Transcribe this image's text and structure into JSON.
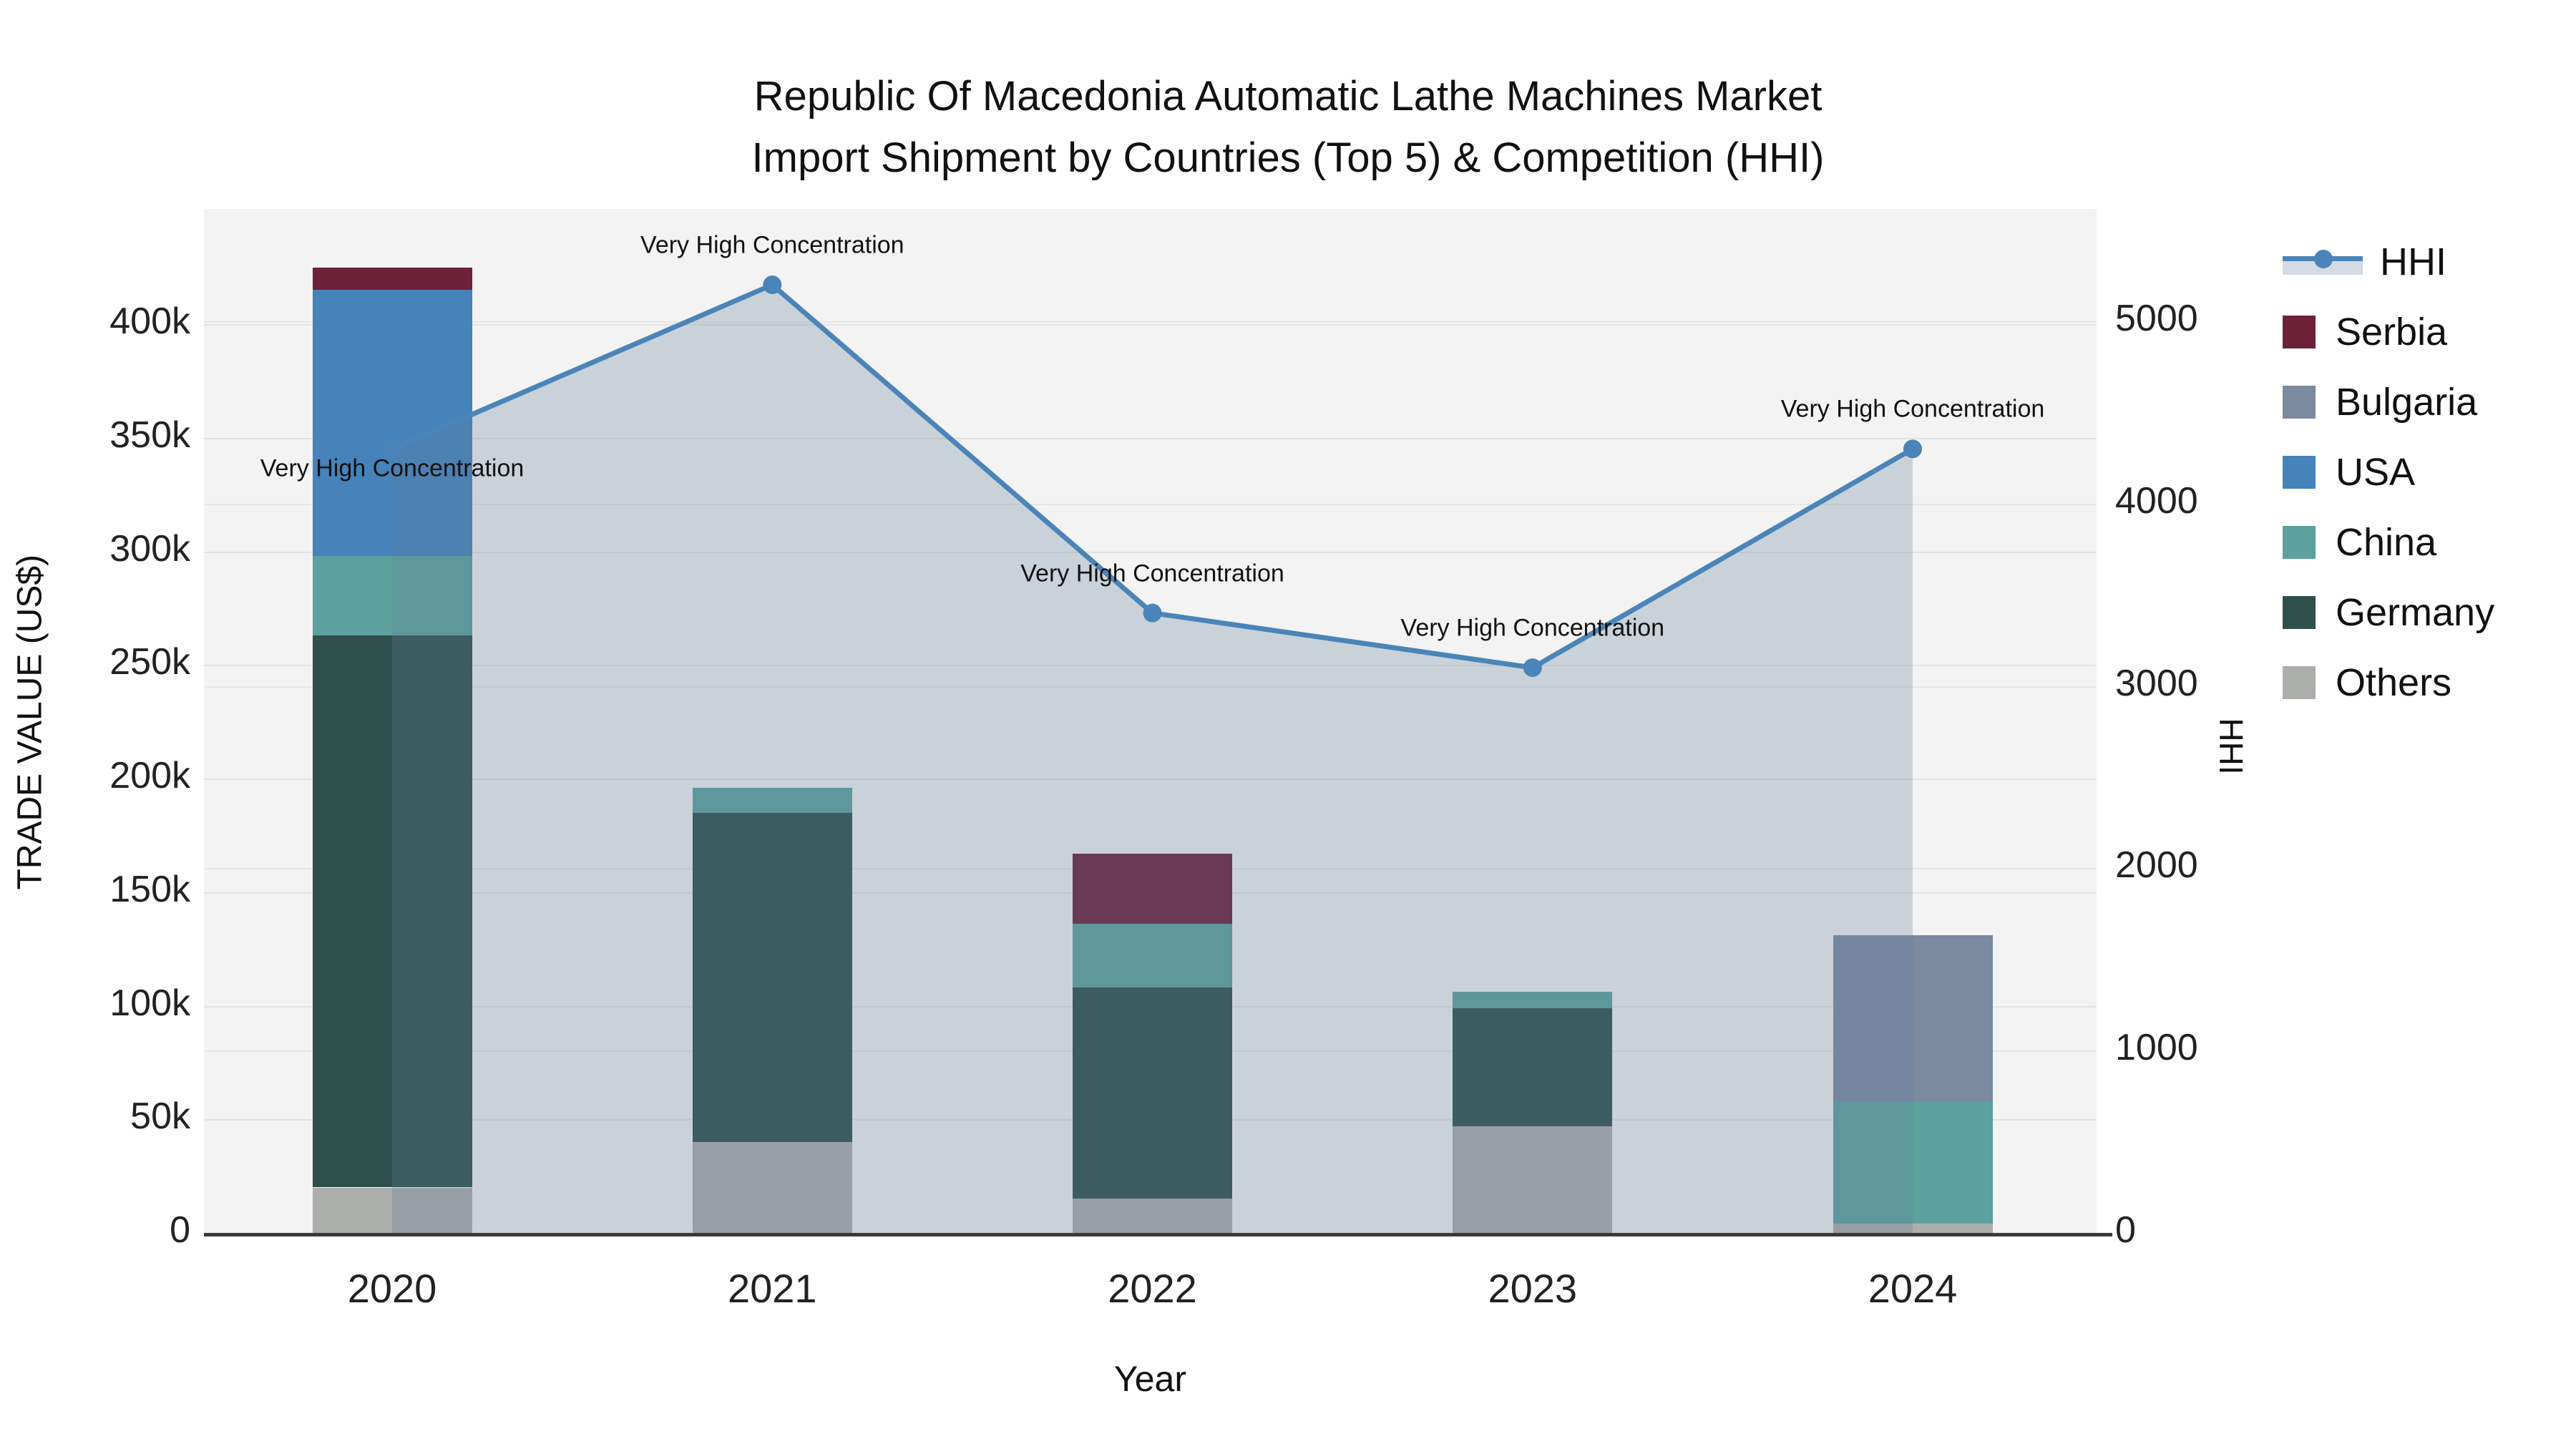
{
  "title": {
    "line1": "Republic Of Macedonia Automatic Lathe Machines Market",
    "line2": "Import Shipment by Countries (Top 5) & Competition (HHI)"
  },
  "colors": {
    "plot_background": "#f2f3f2",
    "hhi_line": "#4b84b8",
    "hhi_fill": "rgba(101,127,156,0.28)",
    "serbia": "#6d2139",
    "bulgaria": "#7b89a1",
    "usa": "#4583ba",
    "china": "#5ca19d",
    "germany": "#2f4f4b",
    "others": "#acaeab"
  },
  "legend": {
    "items": [
      {
        "label": "HHI",
        "type": "line",
        "color": "#4b84b8"
      },
      {
        "label": "Serbia",
        "type": "swatch",
        "color": "#6d2139"
      },
      {
        "label": "Bulgaria",
        "type": "swatch",
        "color": "#7b89a1"
      },
      {
        "label": "USA",
        "type": "swatch",
        "color": "#4583ba"
      },
      {
        "label": "China",
        "type": "swatch",
        "color": "#5ca19d"
      },
      {
        "label": "Germany",
        "type": "swatch",
        "color": "#2f4f4b"
      },
      {
        "label": "Others",
        "type": "swatch",
        "color": "#acaeab"
      }
    ]
  },
  "chart_data": {
    "type": "bar+line",
    "x": [
      "2020",
      "2021",
      "2022",
      "2023",
      "2024"
    ],
    "x_title": "Year",
    "bar_unit": "US$ thousands",
    "bar_stack_order_bottom_to_top": [
      "Others",
      "Germany",
      "China",
      "USA",
      "Bulgaria",
      "Serbia"
    ],
    "series": [
      {
        "name": "Others",
        "color": "#acaeab",
        "values_k": [
          20,
          40,
          15,
          47,
          4
        ]
      },
      {
        "name": "Germany",
        "color": "#2f4f4b",
        "values_k": [
          243,
          145,
          93,
          52,
          0
        ]
      },
      {
        "name": "China",
        "color": "#5ca19d",
        "values_k": [
          35,
          11,
          28,
          7,
          54
        ]
      },
      {
        "name": "USA",
        "color": "#4583ba",
        "values_k": [
          117,
          0,
          0,
          0,
          0
        ]
      },
      {
        "name": "Bulgaria",
        "color": "#7b89a1",
        "values_k": [
          0,
          0,
          0,
          0,
          73
        ]
      },
      {
        "name": "Serbia",
        "color": "#6d2139",
        "values_k": [
          10,
          0,
          31,
          0,
          0
        ]
      }
    ],
    "bar_totals_k": [
      425,
      196,
      167,
      106,
      131
    ],
    "line": {
      "name": "HHI",
      "color": "#4b84b8",
      "fill": "rgba(101,127,156,0.28)",
      "values": [
        4300,
        5200,
        3400,
        3100,
        4300
      ]
    },
    "annotations": [
      {
        "text": "Very High Concentration",
        "point_index": 0,
        "position": "below"
      },
      {
        "text": "Very High Concentration",
        "point_index": 1,
        "position": "above"
      },
      {
        "text": "Very High Concentration",
        "point_index": 2,
        "position": "above"
      },
      {
        "text": "Very High Concentration",
        "point_index": 3,
        "position": "above"
      },
      {
        "text": "Very High Concentration",
        "point_index": 4,
        "position": "above"
      }
    ],
    "y_left": {
      "title": "TRADE VALUE (US$)",
      "tick_labels": [
        "0",
        "50k",
        "100k",
        "150k",
        "200k",
        "250k",
        "300k",
        "350k",
        "400k"
      ],
      "tick_values_k": [
        0,
        50,
        100,
        150,
        200,
        250,
        300,
        350,
        400
      ],
      "range_k": [
        0,
        451
      ],
      "grid": true
    },
    "y_right": {
      "title": "HHI",
      "tick_labels": [
        "0",
        "1000",
        "2000",
        "3000",
        "4000",
        "5000"
      ],
      "tick_values": [
        0,
        1000,
        2000,
        3000,
        4000,
        5000
      ],
      "range": [
        0,
        5620
      ],
      "grid": true
    },
    "legend_position": "right"
  }
}
